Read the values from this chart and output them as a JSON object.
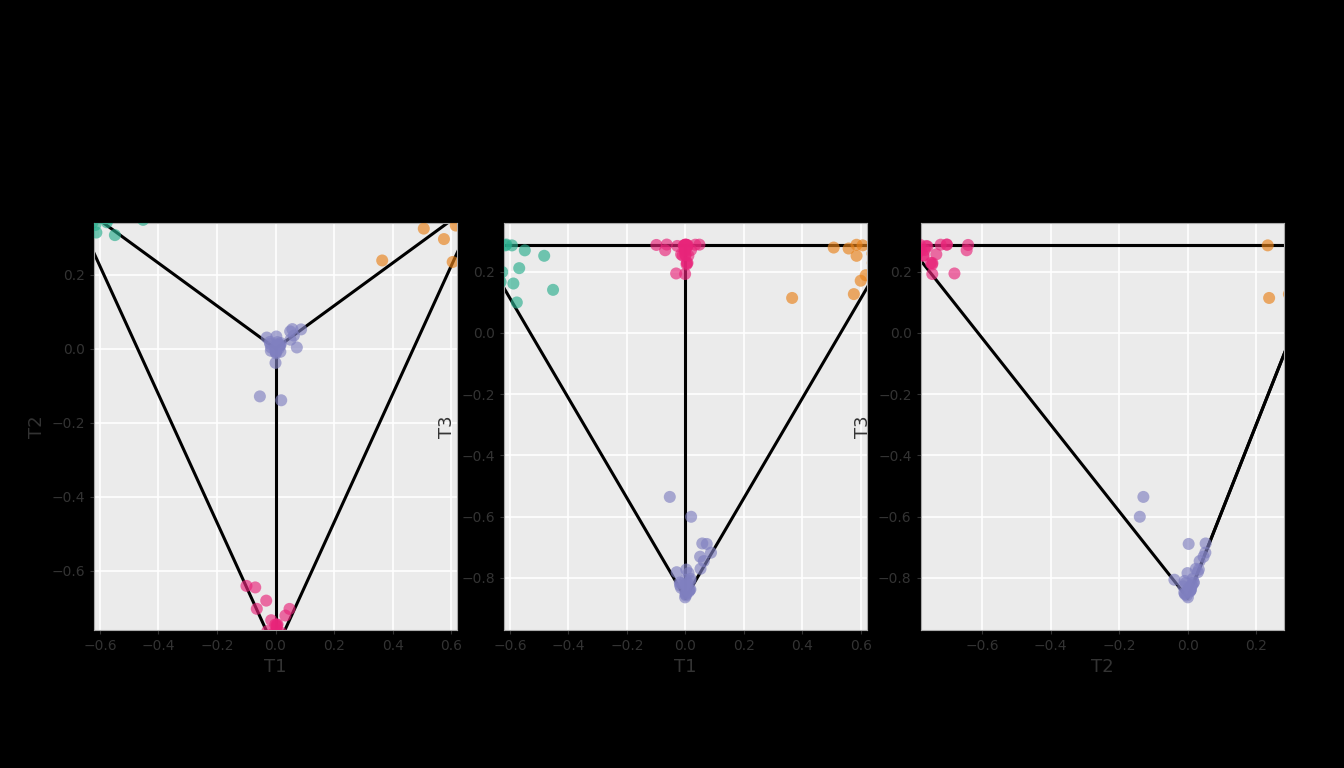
{
  "colors_map": {
    "0": "#E8821A",
    "1": "#2BAE8E",
    "2": "#E8257A",
    "3": "#8080C0"
  },
  "xlabel1": "T1",
  "ylabel1": "T2",
  "xlabel2": "T1",
  "ylabel2": "T3",
  "xlabel3": "T2",
  "ylabel3": "T3",
  "point_size": 75,
  "alpha": 0.65,
  "bg_color": "#ebebeb",
  "outer_bg_color": "#000000",
  "linewidth": 2.2,
  "n_per_class": 30,
  "concentration": 18,
  "seed": 42,
  "tick_fontsize": 10,
  "label_fontsize": 13
}
